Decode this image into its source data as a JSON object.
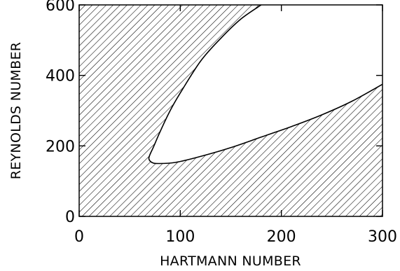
{
  "chart_data": {
    "type": "area",
    "xlabel": "HARTMANN NUMBER",
    "ylabel": "REYNOLDS NUMBER",
    "xlim": [
      0,
      300
    ],
    "ylim": [
      0,
      600
    ],
    "xticks": [
      0,
      100,
      200,
      300
    ],
    "yticks": [
      0,
      200,
      400,
      600
    ],
    "grid": false,
    "fill": "diagonal hatching",
    "stability_boundary": {
      "upper_branch": [
        {
          "x": 180,
          "y": 600
        },
        {
          "x": 160,
          "y": 560
        },
        {
          "x": 140,
          "y": 505
        },
        {
          "x": 120,
          "y": 440
        },
        {
          "x": 100,
          "y": 350
        },
        {
          "x": 90,
          "y": 300
        },
        {
          "x": 80,
          "y": 240
        },
        {
          "x": 74,
          "y": 200
        },
        {
          "x": 70,
          "y": 175
        },
        {
          "x": 69,
          "y": 163
        }
      ],
      "lower_branch": [
        {
          "x": 69,
          "y": 163
        },
        {
          "x": 72,
          "y": 153
        },
        {
          "x": 78,
          "y": 150
        },
        {
          "x": 95,
          "y": 153
        },
        {
          "x": 120,
          "y": 170
        },
        {
          "x": 150,
          "y": 195
        },
        {
          "x": 180,
          "y": 225
        },
        {
          "x": 210,
          "y": 255
        },
        {
          "x": 240,
          "y": 288
        },
        {
          "x": 270,
          "y": 327
        },
        {
          "x": 300,
          "y": 375
        }
      ]
    }
  }
}
